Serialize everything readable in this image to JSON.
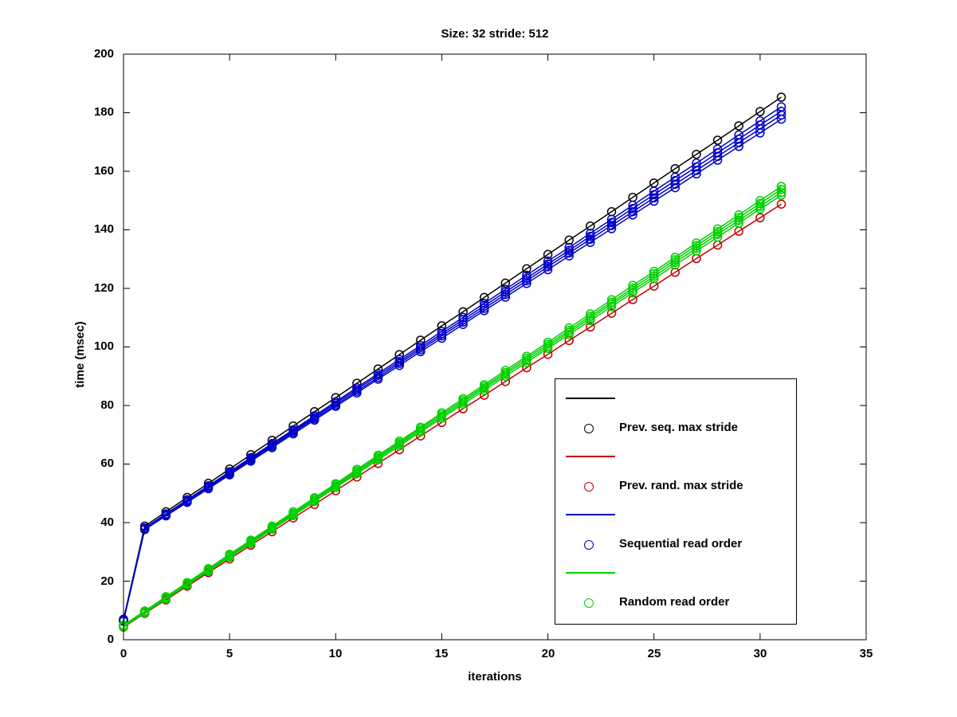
{
  "chart_data": {
    "type": "line",
    "title": "Size: 32 stride: 512",
    "xlabel": "iterations",
    "ylabel": "time (msec)",
    "xlim": [
      0,
      35
    ],
    "ylim": [
      0,
      200
    ],
    "grid": false,
    "marker": "circle-hollow",
    "legend_position": "inside-lower-right",
    "xticks": [
      "0",
      "5",
      "10",
      "15",
      "20",
      "25",
      "30",
      "35"
    ],
    "yticks": [
      "0",
      "20",
      "40",
      "60",
      "80",
      "100",
      "120",
      "140",
      "160",
      "180",
      "200"
    ],
    "x": [
      0,
      1,
      2,
      3,
      4,
      5,
      6,
      7,
      8,
      9,
      10,
      11,
      12,
      13,
      14,
      15,
      16,
      17,
      18,
      19,
      20,
      21,
      22,
      23,
      24,
      25,
      26,
      27,
      28,
      29,
      30,
      31
    ],
    "series": [
      {
        "name": "Prev. seq. max stride",
        "color": "#000000",
        "runs": [
          [
            7.0,
            38.8,
            43.7,
            48.6,
            53.4,
            58.3,
            63.2,
            68.1,
            73.0,
            77.9,
            82.7,
            87.6,
            92.5,
            97.4,
            102.3,
            107.2,
            112.0,
            116.9,
            121.8,
            126.7,
            131.6,
            136.5,
            141.3,
            146.2,
            151.1,
            156.0,
            160.9,
            165.8,
            170.6,
            175.5,
            180.4,
            185.3
          ]
        ]
      },
      {
        "name": "Prev. rand. max stride",
        "color": "#c00000",
        "runs": [
          [
            4.3,
            9.0,
            13.6,
            18.3,
            22.9,
            27.6,
            32.3,
            36.9,
            41.6,
            46.2,
            50.9,
            55.6,
            60.2,
            64.9,
            69.6,
            74.2,
            78.9,
            83.5,
            88.2,
            92.9,
            97.5,
            102.2,
            106.8,
            111.5,
            116.2,
            120.8,
            125.5,
            130.2,
            134.8,
            139.5,
            144.1,
            148.8
          ]
        ]
      },
      {
        "name": "Sequential read order",
        "color": "#0000c8",
        "runs": [
          [
            6.3,
            37.6,
            42.3,
            46.9,
            51.6,
            56.3,
            61.0,
            65.6,
            70.3,
            75.0,
            79.7,
            84.3,
            89.0,
            93.7,
            98.4,
            103.0,
            107.7,
            112.4,
            117.0,
            121.7,
            126.4,
            131.1,
            135.7,
            140.4,
            145.1,
            149.8,
            154.4,
            159.1,
            163.8,
            168.5,
            173.1,
            177.8
          ],
          [
            6.5,
            37.8,
            42.5,
            47.2,
            51.9,
            56.7,
            61.4,
            66.1,
            70.8,
            75.5,
            80.2,
            84.9,
            89.6,
            94.4,
            99.1,
            103.8,
            108.5,
            113.2,
            117.9,
            122.6,
            127.4,
            132.1,
            136.8,
            141.5,
            146.2,
            150.9,
            155.6,
            160.3,
            165.1,
            169.8,
            174.5,
            179.2
          ],
          [
            6.6,
            38.0,
            42.8,
            47.5,
            52.3,
            57.0,
            61.8,
            66.5,
            71.3,
            76.0,
            80.8,
            85.5,
            90.3,
            95.0,
            99.8,
            104.5,
            109.3,
            114.0,
            118.8,
            123.5,
            128.3,
            133.0,
            137.8,
            142.5,
            147.3,
            152.0,
            156.8,
            161.5,
            166.3,
            171.0,
            175.8,
            180.5
          ],
          [
            6.8,
            38.2,
            43.0,
            47.8,
            52.6,
            57.4,
            62.2,
            67.0,
            71.7,
            76.5,
            81.3,
            86.1,
            90.9,
            95.7,
            100.5,
            105.3,
            110.1,
            114.9,
            119.7,
            124.5,
            129.3,
            134.0,
            138.8,
            143.6,
            148.4,
            153.2,
            158.0,
            162.8,
            167.6,
            172.4,
            177.2,
            182.0
          ]
        ]
      },
      {
        "name": "Random read order",
        "color": "#00d000",
        "runs": [
          [
            4.4,
            9.2,
            13.9,
            18.7,
            23.4,
            28.2,
            32.9,
            37.7,
            42.4,
            47.2,
            52.0,
            56.7,
            61.5,
            66.2,
            71.0,
            75.7,
            80.5,
            85.2,
            90.0,
            94.7,
            99.5,
            104.3,
            109.0,
            113.8,
            118.5,
            123.3,
            128.0,
            132.8,
            137.5,
            142.3,
            147.1,
            151.8
          ],
          [
            4.6,
            9.4,
            14.2,
            18.9,
            23.7,
            28.5,
            33.3,
            38.1,
            42.8,
            47.6,
            52.4,
            57.2,
            62.0,
            66.8,
            71.5,
            76.3,
            81.1,
            85.9,
            90.7,
            95.4,
            100.2,
            105.0,
            109.8,
            114.6,
            119.3,
            124.1,
            128.9,
            133.7,
            138.5,
            143.2,
            148.0,
            152.8
          ],
          [
            4.8,
            9.6,
            14.4,
            19.2,
            24.0,
            28.8,
            33.6,
            38.4,
            43.2,
            48.1,
            52.9,
            57.7,
            62.5,
            67.3,
            72.1,
            76.9,
            81.7,
            86.5,
            91.3,
            96.1,
            100.9,
            105.7,
            110.5,
            115.3,
            120.1,
            125.0,
            129.8,
            134.6,
            139.4,
            144.2,
            149.0,
            153.8
          ],
          [
            5.0,
            9.8,
            14.7,
            19.5,
            24.3,
            29.2,
            34.0,
            38.8,
            43.7,
            48.5,
            53.3,
            58.2,
            63.0,
            67.8,
            72.6,
            77.5,
            82.3,
            87.1,
            92.0,
            96.8,
            101.6,
            106.5,
            111.3,
            116.1,
            121.0,
            125.8,
            130.6,
            135.5,
            140.3,
            145.1,
            150.0,
            154.8
          ]
        ]
      }
    ],
    "legend": [
      {
        "label": "Prev. seq. max stride",
        "color": "#000000"
      },
      {
        "label": "Prev. rand. max stride",
        "color": "#c00000"
      },
      {
        "label": "Sequential read order",
        "color": "#0000c8"
      },
      {
        "label": "Random read order",
        "color": "#00d000"
      }
    ]
  }
}
